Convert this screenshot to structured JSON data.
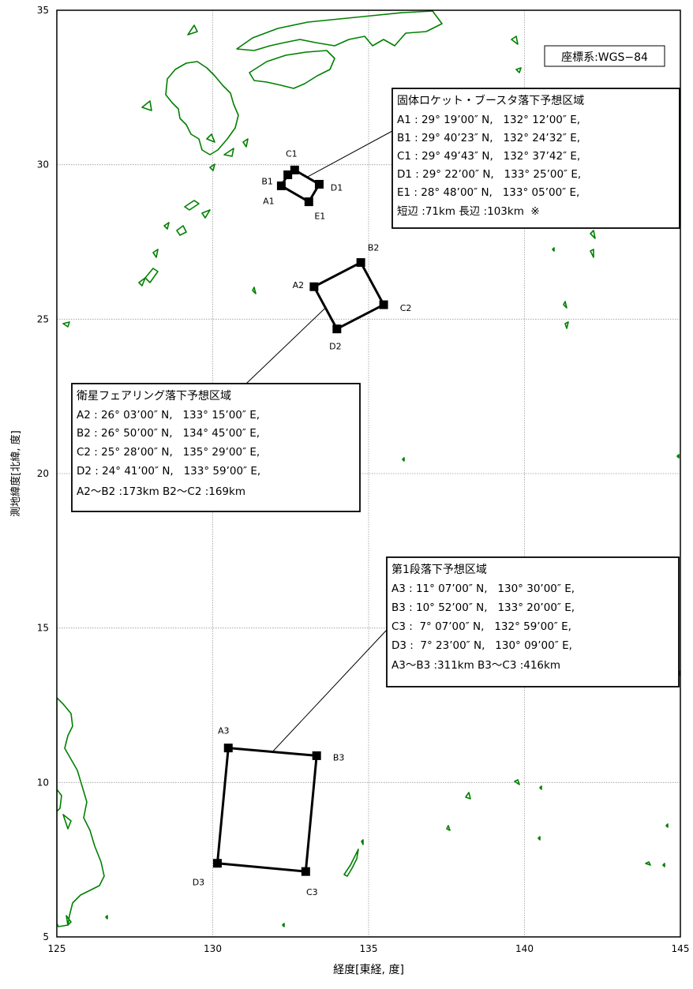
{
  "map": {
    "coord_system_label": "座標系:WGS−84",
    "xlabel": "経度[東経, 度]",
    "ylabel": "測地緯度[北緯, 度]",
    "xlim": [
      125,
      145
    ],
    "ylim": [
      5,
      35
    ],
    "x_ticks": [
      125,
      130,
      135,
      140,
      145
    ],
    "y_ticks": [
      5,
      10,
      15,
      20,
      25,
      30,
      35
    ],
    "grid": true,
    "land_color": "#008000",
    "polygon_color": "#000000"
  },
  "zones": [
    {
      "id": "booster",
      "title": "固体ロケット・ブースタ落下予想区域",
      "vertices": [
        {
          "label": "A1",
          "lon": 132.2,
          "lat": 29.3167
        },
        {
          "label": "B1",
          "lon": 132.4089,
          "lat": 29.6731
        },
        {
          "label": "C1",
          "lon": 132.6283,
          "lat": 29.8286
        },
        {
          "label": "D1",
          "lon": 133.4167,
          "lat": 29.3667
        },
        {
          "label": "E1",
          "lon": 133.0833,
          "lat": 28.8
        }
      ],
      "lines": [
        "A1 : 29° 19’00″ N,   132° 12’00″ E,",
        "B1 : 29° 40’23″ N,   132° 24’32″ E,",
        "C1 : 29° 49’43″ N,   132° 37’42″ E,",
        "D1 : 29° 22’00″ N,   133° 25’00″ E,",
        "E1 : 28° 48’00″ N,   133° 05’00″ E,",
        "短辺 :71km 長辺 :103km  ※"
      ]
    },
    {
      "id": "fairing",
      "title": "衛星フェアリング落下予想区域",
      "vertices": [
        {
          "label": "A2",
          "lon": 133.25,
          "lat": 26.05
        },
        {
          "label": "B2",
          "lon": 134.75,
          "lat": 26.8333
        },
        {
          "label": "C2",
          "lon": 135.4833,
          "lat": 25.4667
        },
        {
          "label": "D2",
          "lon": 133.9833,
          "lat": 24.6833
        }
      ],
      "lines": [
        "A2 : 26° 03’00″ N,   133° 15’00″ E,",
        "B2 : 26° 50’00″ N,   134° 45’00″ E,",
        "C2 : 25° 28’00″ N,   135° 29’00″ E,",
        "D2 : 24° 41’00″ N,   133° 59’00″ E,",
        "A2〜B2 :173km B2〜C2 :169km"
      ]
    },
    {
      "id": "stage1",
      "title": "第1段落下予想区域",
      "vertices": [
        {
          "label": "A3",
          "lon": 130.5,
          "lat": 11.1167
        },
        {
          "label": "B3",
          "lon": 133.3333,
          "lat": 10.8667
        },
        {
          "label": "C3",
          "lon": 132.9833,
          "lat": 7.1167
        },
        {
          "label": "D3",
          "lon": 130.15,
          "lat": 7.3833
        }
      ],
      "lines": [
        "A3 : 11° 07’00″ N,   130° 30’00″ E,",
        "B3 : 10° 52’00″ N,   133° 20’00″ E,",
        "C3 :  7° 07’00″ N,   132° 59’00″ E,",
        "D3 :  7° 23’00″ N,   130° 09’00″ E,",
        "A3〜B3 :311km B3〜C3 :416km"
      ]
    }
  ]
}
